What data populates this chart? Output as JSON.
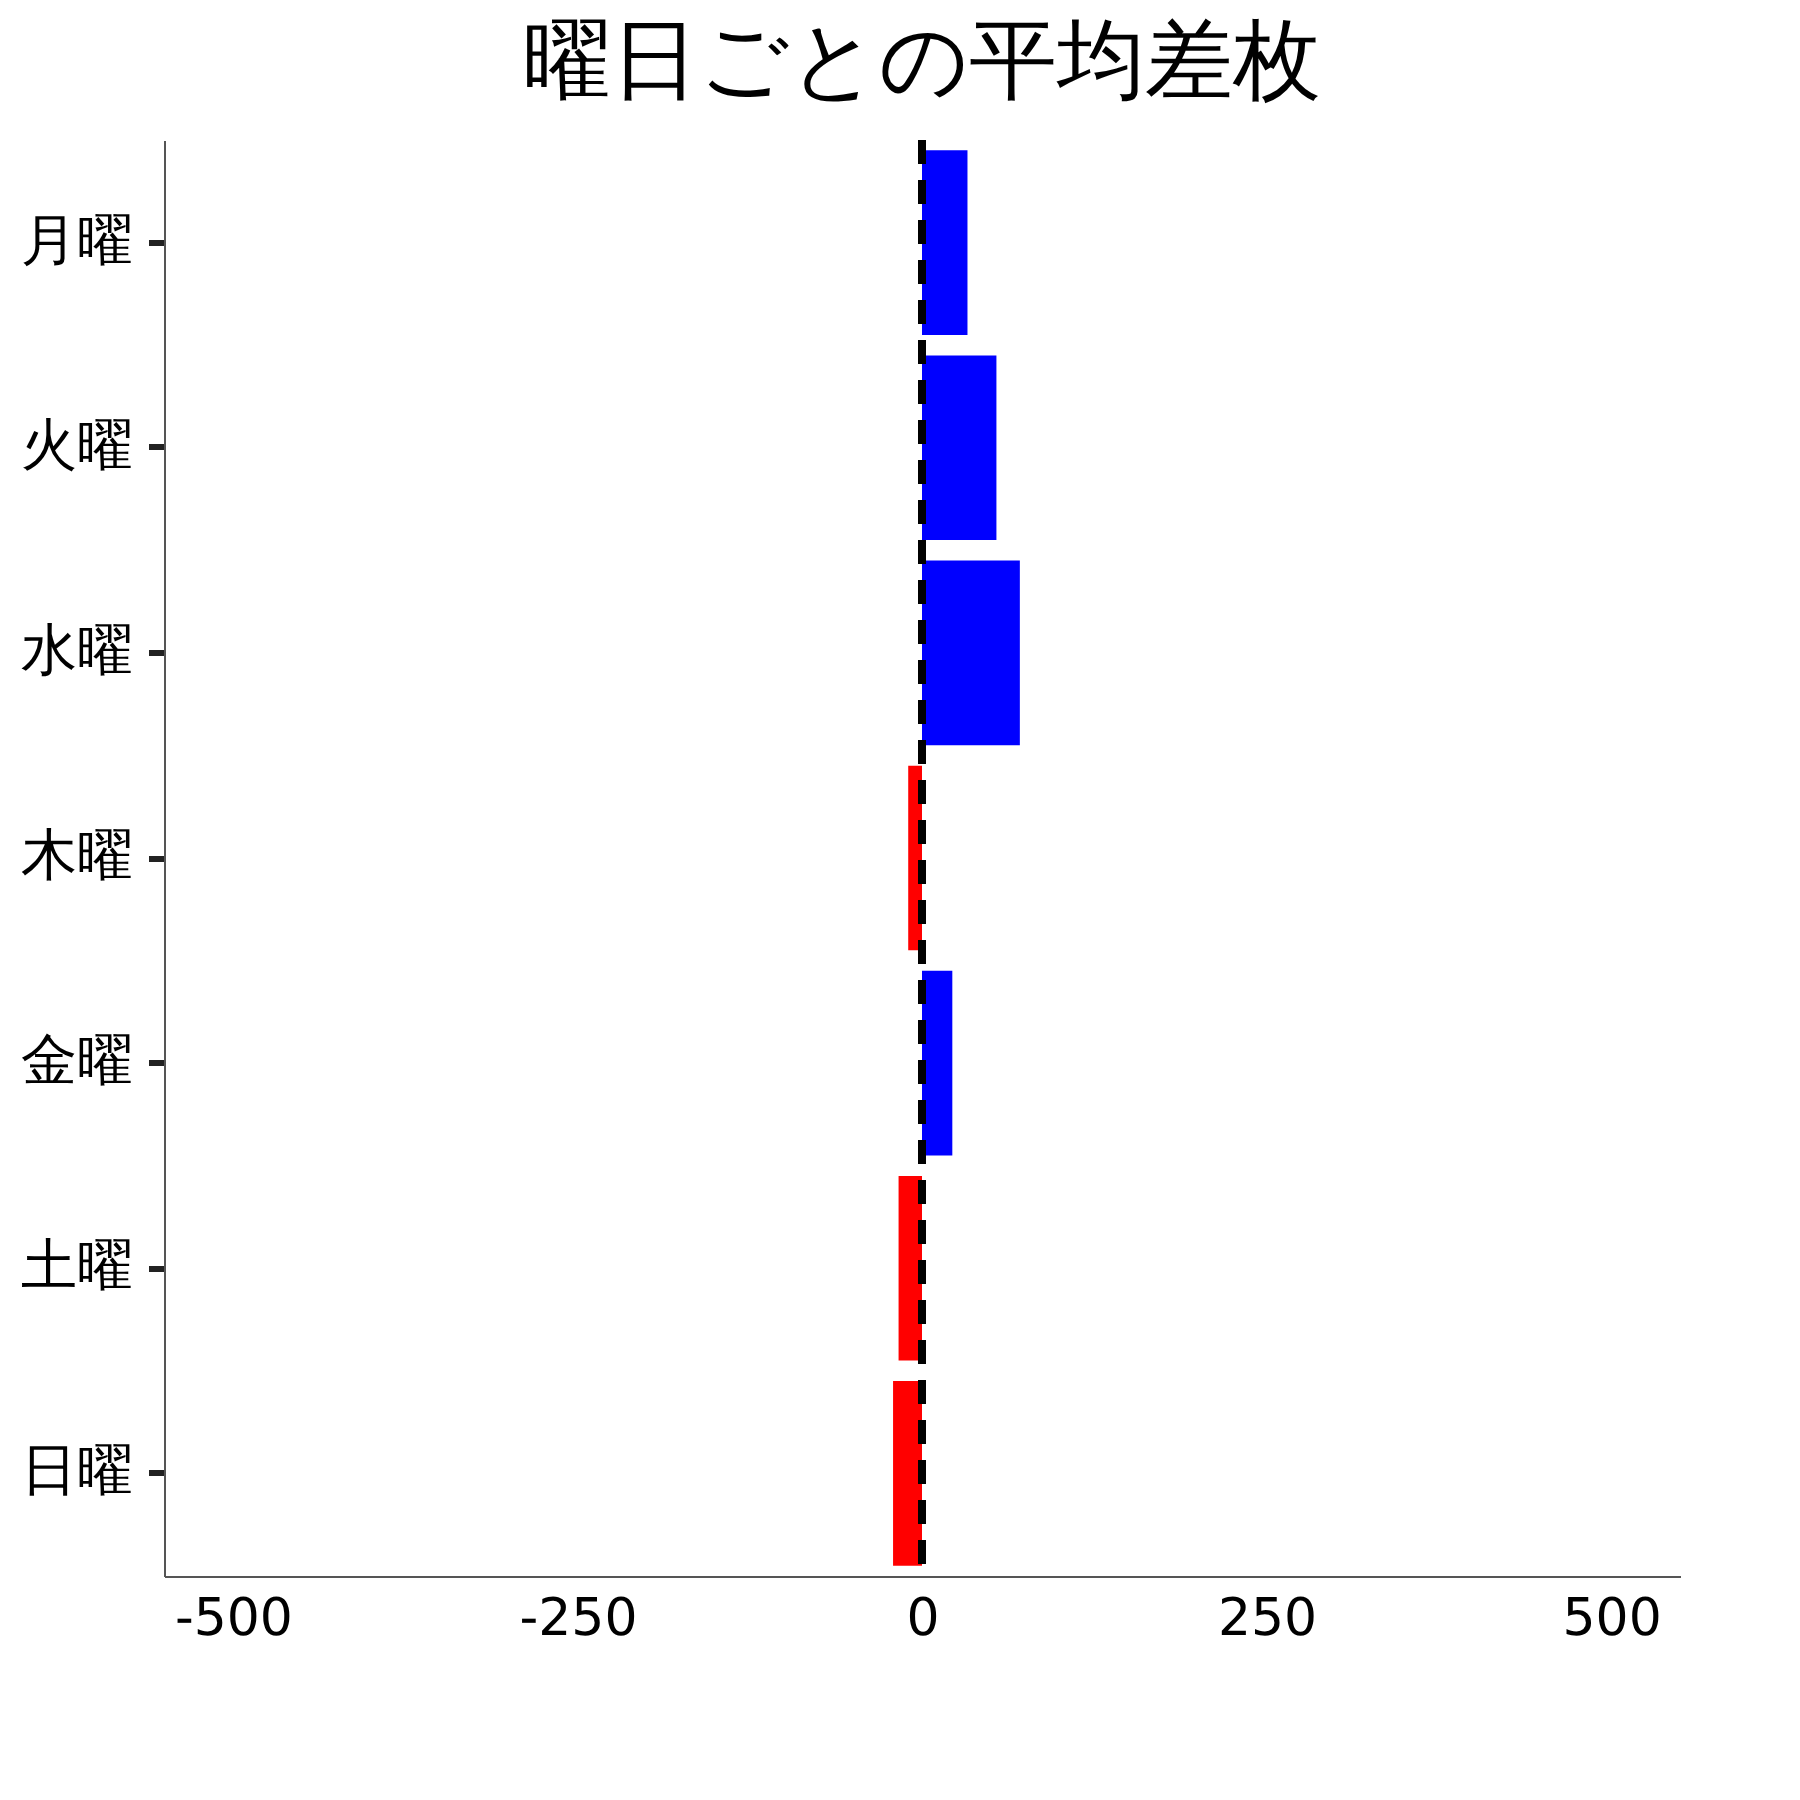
{
  "chart_data": {
    "type": "bar",
    "orientation": "horizontal",
    "title": "曜日ごとの平均差枚",
    "categories": [
      "月曜",
      "火曜",
      "水曜",
      "木曜",
      "金曜",
      "土曜",
      "日曜"
    ],
    "values": [
      33,
      54,
      71,
      -10,
      22,
      -17,
      -21
    ],
    "colors": [
      "#0000ff",
      "#0000ff",
      "#0000ff",
      "#ff0000",
      "#0000ff",
      "#ff0000",
      "#ff0000"
    ],
    "xlim": [
      -550,
      550
    ],
    "xticks": [
      -500,
      -250,
      0,
      250,
      500
    ],
    "grid": false,
    "ref_lines": [
      {
        "axis": "x",
        "value": 0,
        "color": "#000000",
        "line_style": "dashed"
      }
    ]
  }
}
